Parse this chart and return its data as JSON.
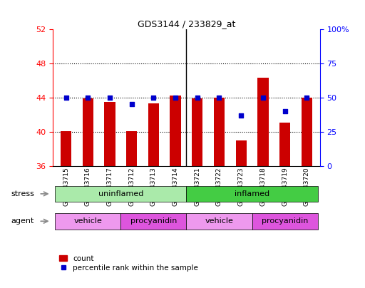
{
  "title": "GDS3144 / 233829_at",
  "samples": [
    "GSM243715",
    "GSM243716",
    "GSM243717",
    "GSM243712",
    "GSM243713",
    "GSM243714",
    "GSM243721",
    "GSM243722",
    "GSM243723",
    "GSM243718",
    "GSM243719",
    "GSM243720"
  ],
  "counts": [
    40.1,
    43.9,
    43.5,
    40.1,
    43.3,
    44.2,
    43.9,
    44.0,
    39.0,
    46.3,
    41.1,
    44.0
  ],
  "percentile_pct": [
    50,
    50,
    50,
    45,
    50,
    50,
    50,
    50,
    37,
    50,
    40,
    50
  ],
  "ylim_left": [
    36,
    52
  ],
  "ylim_right": [
    0,
    100
  ],
  "yticks_left": [
    36,
    40,
    44,
    48,
    52
  ],
  "yticks_right": [
    0,
    25,
    50,
    75,
    100
  ],
  "bar_color": "#cc0000",
  "dot_color": "#0000cc",
  "bar_bottom": 36,
  "stress_groups": [
    {
      "label": "uninflamed",
      "start": 0,
      "end": 6,
      "color": "#aaeaaa"
    },
    {
      "label": "inflamed",
      "start": 6,
      "end": 12,
      "color": "#44cc44"
    }
  ],
  "agent_groups": [
    {
      "label": "vehicle",
      "start": 0,
      "end": 3,
      "color": "#ee99ee"
    },
    {
      "label": "procyanidin",
      "start": 3,
      "end": 6,
      "color": "#dd55dd"
    },
    {
      "label": "vehicle",
      "start": 6,
      "end": 9,
      "color": "#ee99ee"
    },
    {
      "label": "procyanidin",
      "start": 9,
      "end": 12,
      "color": "#dd55dd"
    }
  ],
  "legend_count_label": "count",
  "legend_pct_label": "percentile rank within the sample",
  "stress_label": "stress",
  "agent_label": "agent",
  "dotted_lines": [
    40,
    44,
    48
  ],
  "bar_width": 0.5,
  "group_separator": 5.5
}
